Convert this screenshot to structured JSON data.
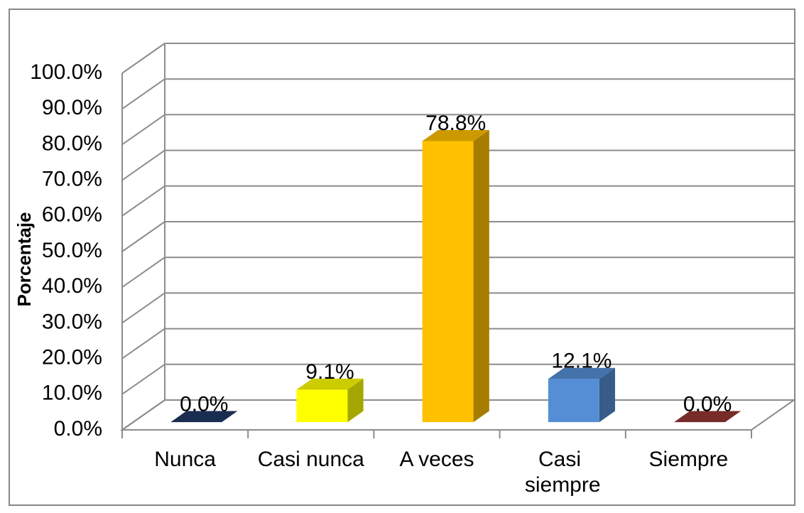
{
  "chart_data": {
    "type": "bar3d",
    "y_label": "Porcentaje",
    "categories": [
      "Nunca",
      "Casi nunca",
      "A veces",
      "Casi siempre",
      "Siempre"
    ],
    "values": [
      0,
      9.1,
      78.8,
      12.1,
      0
    ],
    "value_labels": [
      "0.0%",
      "9.1%",
      "78.8%",
      "12.1%",
      "0.0%"
    ],
    "colors": [
      "#1f3864",
      "#ffff00",
      "#ffc000",
      "#558ed5",
      "#953735"
    ],
    "ylim": [
      0,
      100
    ],
    "yticks": [
      {
        "value": 0,
        "label": "0.0%"
      },
      {
        "value": 10,
        "label": "10.0%"
      },
      {
        "value": 20,
        "label": "20.0%"
      },
      {
        "value": 30,
        "label": "30.0%"
      },
      {
        "value": 40,
        "label": "40.0%"
      },
      {
        "value": 50,
        "label": "50.0%"
      },
      {
        "value": 60,
        "label": "60.0%"
      },
      {
        "value": 70,
        "label": "70.0%"
      },
      {
        "value": 80,
        "label": "80.0%"
      },
      {
        "value": 90,
        "label": "90.0%"
      },
      {
        "value": 100,
        "label": "100.0%"
      }
    ],
    "grid": true
  }
}
